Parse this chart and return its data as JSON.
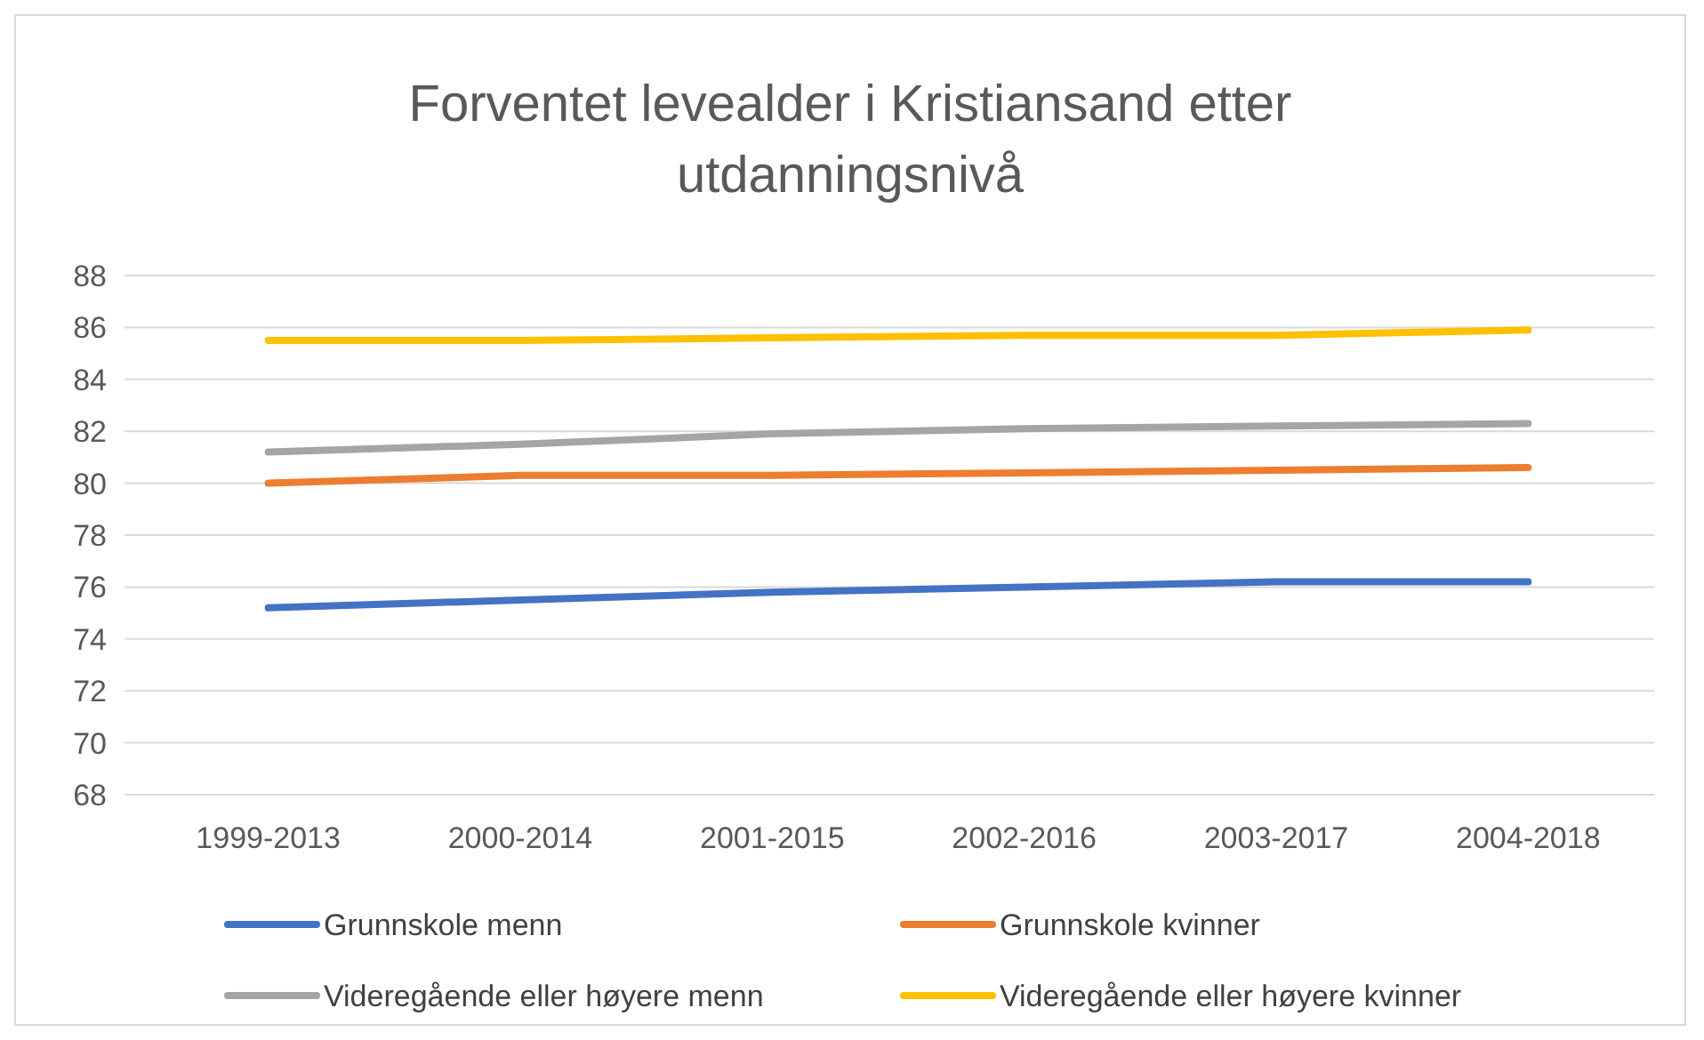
{
  "chart_data": {
    "type": "line",
    "title": "Forventet levealder i Kristiansand etter utdanningsnivå",
    "categories": [
      "1999-2013",
      "2000-2014",
      "2001-2015",
      "2002-2016",
      "2003-2017",
      "2004-2018"
    ],
    "series": [
      {
        "name": "Grunnskole menn",
        "color": "#4472c4",
        "values": [
          75.2,
          75.5,
          75.8,
          76.0,
          76.2,
          76.2
        ]
      },
      {
        "name": "Grunnskole kvinner",
        "color": "#ed7d31",
        "values": [
          80.0,
          80.3,
          80.3,
          80.4,
          80.5,
          80.6
        ]
      },
      {
        "name": "Videregående eller høyere menn",
        "color": "#a5a5a5",
        "values": [
          81.2,
          81.5,
          81.9,
          82.1,
          82.2,
          82.3
        ]
      },
      {
        "name": "Videregående eller høyere kvinner",
        "color": "#ffc000",
        "values": [
          85.5,
          85.5,
          85.6,
          85.7,
          85.7,
          85.9
        ]
      }
    ],
    "ylim": [
      68,
      88
    ],
    "yticks": [
      68,
      70,
      72,
      74,
      76,
      78,
      80,
      82,
      84,
      86,
      88
    ],
    "grid": "y",
    "legend": "bottom",
    "marker": "none",
    "line_style": "solid"
  }
}
